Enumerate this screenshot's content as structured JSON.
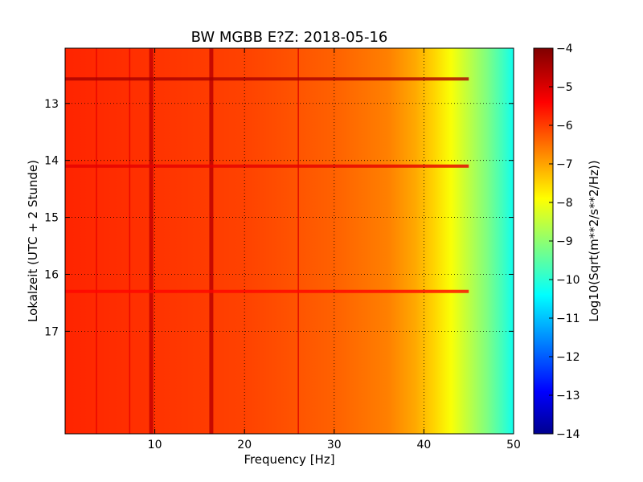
{
  "chart_data": {
    "type": "heatmap",
    "title": "BW MGBB E?Z: 2018-05-16",
    "xlabel": "Frequency [Hz]",
    "ylabel": "Lokalzeit (UTC + 2 Stunde)",
    "xlim": [
      0,
      50
    ],
    "ylim": [
      18.8,
      12.03
    ],
    "xticks": [
      "10",
      "20",
      "30",
      "40",
      "50"
    ],
    "yticks": [
      "13",
      "14",
      "15",
      "16",
      "17"
    ],
    "grid": true,
    "colorbar": {
      "label": "Log10(Sqrt(m**2/s**2/Hz))",
      "range": [
        -14,
        -4
      ],
      "ticks": [
        "-4",
        "-5",
        "-6",
        "-7",
        "-8",
        "-9",
        "-10",
        "-11",
        "-12",
        "-13",
        "-14"
      ]
    },
    "background_level_by_frequency": [
      {
        "x": 0,
        "z": -5.6
      },
      {
        "x": 20,
        "z": -5.9
      },
      {
        "x": 30,
        "z": -6.2
      },
      {
        "x": 36,
        "z": -6.5
      },
      {
        "x": 39,
        "z": -6.9
      },
      {
        "x": 41,
        "z": -7.3
      },
      {
        "x": 43,
        "z": -7.8
      },
      {
        "x": 45,
        "z": -8.4
      },
      {
        "x": 47,
        "z": -9.0
      },
      {
        "x": 49,
        "z": -9.7
      },
      {
        "x": 50,
        "z": -10.1
      }
    ],
    "vertical_lines": [
      {
        "x": 3.5,
        "z": -5.0
      },
      {
        "x": 7.2,
        "z": -5.0
      },
      {
        "x": 9.6,
        "z": -4.7
      },
      {
        "x": 16.3,
        "z": -4.6
      },
      {
        "x": 26,
        "z": -4.9
      }
    ],
    "horizontal_bands": [
      {
        "y": 12.57,
        "z": -4.4
      },
      {
        "y": 14.1,
        "z": -5.0
      },
      {
        "y": 16.3,
        "z": -5.3
      }
    ]
  }
}
